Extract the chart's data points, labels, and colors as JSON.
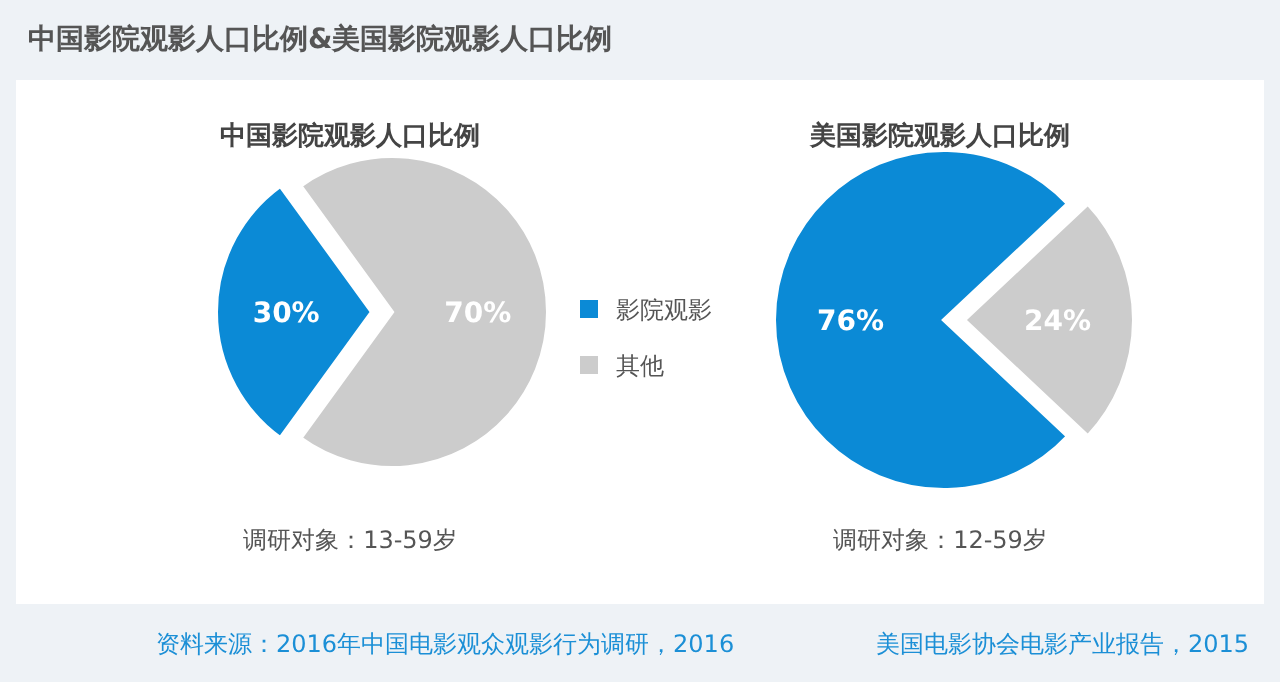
{
  "chart_data": [
    {
      "type": "other",
      "title": "中国影院观影人口比例&美国影院观影人口比例",
      "annotations": [
        "资料来源：2016年中国电影观众观影行为调研，2016",
        "美国电影协会电影产业报告，2015"
      ]
    },
    {
      "type": "pie",
      "title": "中国影院观影人口比例",
      "categories": [
        "影院观影",
        "其他"
      ],
      "values": [
        30,
        70
      ],
      "colors": [
        "#0b8ad6",
        "#cccccc"
      ],
      "value_labels": [
        "30%",
        "70%"
      ],
      "legend": "right",
      "annotations": [
        "调研对象：13-59岁"
      ]
    },
    {
      "type": "pie",
      "title": "美国影院观影人口比例",
      "categories": [
        null,
        null
      ],
      "values": [
        76,
        24
      ],
      "colors": [
        "#0b8ad6",
        "#cccccc"
      ],
      "value_labels": [
        "76%",
        "24%"
      ],
      "annotations": [
        "调研对象：12-59岁"
      ]
    }
  ]
}
